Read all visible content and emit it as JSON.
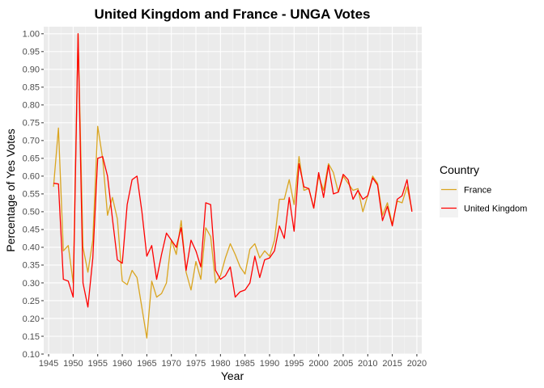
{
  "chart_data": {
    "type": "line",
    "title": "United Kingdom and France - UNGA Votes",
    "xlabel": "Year",
    "ylabel": "Percentage of Yes Votes",
    "xlim": [
      1944,
      2021
    ],
    "ylim": [
      0.1,
      1.02
    ],
    "x_ticks": [
      1945,
      1950,
      1955,
      1960,
      1965,
      1970,
      1975,
      1980,
      1985,
      1990,
      1995,
      2000,
      2005,
      2010,
      2015,
      2020
    ],
    "x_tick_labels": [
      "1945",
      "1950",
      "1955",
      "1960",
      "1965",
      "1970",
      "1975",
      "1980",
      "1985",
      "1990",
      "1995",
      "2000",
      "2005",
      "2010",
      "2015",
      "2020"
    ],
    "y_ticks": [
      0.1,
      0.15,
      0.2,
      0.25,
      0.3,
      0.35,
      0.4,
      0.45,
      0.5,
      0.55,
      0.6,
      0.65,
      0.7,
      0.75,
      0.8,
      0.85,
      0.9,
      0.95,
      1.0
    ],
    "y_tick_labels": [
      "0.10",
      "0.15",
      "0.20",
      "0.25",
      "0.30",
      "0.35",
      "0.40",
      "0.45",
      "0.50",
      "0.55",
      "0.60",
      "0.65",
      "0.70",
      "0.75",
      "0.80",
      "0.85",
      "0.90",
      "0.95",
      "1.00"
    ],
    "grid": true,
    "panel_color": "#ebebeb",
    "legend": {
      "title": "Country",
      "position": "right"
    },
    "series": [
      {
        "name": "France",
        "color": "#daa520",
        "points": [
          [
            1946,
            0.57
          ],
          [
            1947,
            0.735
          ],
          [
            1948,
            0.39
          ],
          [
            1949,
            0.405
          ],
          [
            1950,
            0.3
          ],
          [
            1951,
            1.0
          ],
          [
            1952,
            0.4
          ],
          [
            1953,
            0.33
          ],
          [
            1954,
            0.42
          ],
          [
            1955,
            0.74
          ],
          [
            1956,
            0.65
          ],
          [
            1957,
            0.49
          ],
          [
            1958,
            0.54
          ],
          [
            1959,
            0.48
          ],
          [
            1960,
            0.305
          ],
          [
            1961,
            0.295
          ],
          [
            1962,
            0.335
          ],
          [
            1963,
            0.315
          ],
          [
            1964,
            0.23
          ],
          [
            1965,
            0.145
          ],
          [
            1966,
            0.305
          ],
          [
            1967,
            0.26
          ],
          [
            1968,
            0.27
          ],
          [
            1969,
            0.3
          ],
          [
            1970,
            0.42
          ],
          [
            1971,
            0.38
          ],
          [
            1972,
            0.475
          ],
          [
            1973,
            0.33
          ],
          [
            1974,
            0.28
          ],
          [
            1975,
            0.36
          ],
          [
            1976,
            0.31
          ],
          [
            1977,
            0.455
          ],
          [
            1978,
            0.43
          ],
          [
            1979,
            0.3
          ],
          [
            1980,
            0.32
          ],
          [
            1981,
            0.37
          ],
          [
            1982,
            0.41
          ],
          [
            1983,
            0.38
          ],
          [
            1984,
            0.345
          ],
          [
            1985,
            0.325
          ],
          [
            1986,
            0.395
          ],
          [
            1987,
            0.41
          ],
          [
            1988,
            0.37
          ],
          [
            1989,
            0.39
          ],
          [
            1990,
            0.375
          ],
          [
            1991,
            0.42
          ],
          [
            1992,
            0.535
          ],
          [
            1993,
            0.535
          ],
          [
            1994,
            0.59
          ],
          [
            1995,
            0.52
          ],
          [
            1996,
            0.655
          ],
          [
            1997,
            0.56
          ],
          [
            1998,
            0.565
          ],
          [
            1999,
            0.51
          ],
          [
            2000,
            0.6
          ],
          [
            2001,
            0.56
          ],
          [
            2002,
            0.635
          ],
          [
            2003,
            0.61
          ],
          [
            2004,
            0.555
          ],
          [
            2005,
            0.6
          ],
          [
            2006,
            0.58
          ],
          [
            2007,
            0.56
          ],
          [
            2008,
            0.565
          ],
          [
            2009,
            0.5
          ],
          [
            2010,
            0.545
          ],
          [
            2011,
            0.6
          ],
          [
            2012,
            0.58
          ],
          [
            2013,
            0.49
          ],
          [
            2014,
            0.525
          ],
          [
            2015,
            0.465
          ],
          [
            2016,
            0.53
          ],
          [
            2017,
            0.525
          ],
          [
            2018,
            0.57
          ],
          [
            2019,
            0.505
          ]
        ]
      },
      {
        "name": "United Kingdom",
        "color": "#ff0000",
        "points": [
          [
            1946,
            0.58
          ],
          [
            1947,
            0.578
          ],
          [
            1948,
            0.31
          ],
          [
            1949,
            0.305
          ],
          [
            1950,
            0.26
          ],
          [
            1951,
            1.0
          ],
          [
            1952,
            0.3
          ],
          [
            1953,
            0.232
          ],
          [
            1954,
            0.37
          ],
          [
            1955,
            0.65
          ],
          [
            1956,
            0.655
          ],
          [
            1957,
            0.6
          ],
          [
            1958,
            0.48
          ],
          [
            1959,
            0.365
          ],
          [
            1960,
            0.355
          ],
          [
            1961,
            0.52
          ],
          [
            1962,
            0.59
          ],
          [
            1963,
            0.6
          ],
          [
            1964,
            0.5
          ],
          [
            1965,
            0.375
          ],
          [
            1966,
            0.405
          ],
          [
            1967,
            0.31
          ],
          [
            1968,
            0.38
          ],
          [
            1969,
            0.44
          ],
          [
            1970,
            0.42
          ],
          [
            1971,
            0.4
          ],
          [
            1972,
            0.455
          ],
          [
            1973,
            0.335
          ],
          [
            1974,
            0.42
          ],
          [
            1975,
            0.39
          ],
          [
            1976,
            0.345
          ],
          [
            1977,
            0.525
          ],
          [
            1978,
            0.52
          ],
          [
            1979,
            0.335
          ],
          [
            1980,
            0.31
          ],
          [
            1981,
            0.32
          ],
          [
            1982,
            0.345
          ],
          [
            1983,
            0.26
          ],
          [
            1984,
            0.275
          ],
          [
            1985,
            0.28
          ],
          [
            1986,
            0.3
          ],
          [
            1987,
            0.375
          ],
          [
            1988,
            0.315
          ],
          [
            1989,
            0.365
          ],
          [
            1990,
            0.37
          ],
          [
            1991,
            0.39
          ],
          [
            1992,
            0.46
          ],
          [
            1993,
            0.425
          ],
          [
            1994,
            0.54
          ],
          [
            1995,
            0.445
          ],
          [
            1996,
            0.635
          ],
          [
            1997,
            0.57
          ],
          [
            1998,
            0.565
          ],
          [
            1999,
            0.51
          ],
          [
            2000,
            0.61
          ],
          [
            2001,
            0.54
          ],
          [
            2002,
            0.63
          ],
          [
            2003,
            0.55
          ],
          [
            2004,
            0.555
          ],
          [
            2005,
            0.605
          ],
          [
            2006,
            0.59
          ],
          [
            2007,
            0.535
          ],
          [
            2008,
            0.56
          ],
          [
            2009,
            0.535
          ],
          [
            2010,
            0.545
          ],
          [
            2011,
            0.595
          ],
          [
            2012,
            0.575
          ],
          [
            2013,
            0.475
          ],
          [
            2014,
            0.515
          ],
          [
            2015,
            0.46
          ],
          [
            2016,
            0.535
          ],
          [
            2017,
            0.545
          ],
          [
            2018,
            0.59
          ],
          [
            2019,
            0.5
          ]
        ]
      }
    ]
  }
}
